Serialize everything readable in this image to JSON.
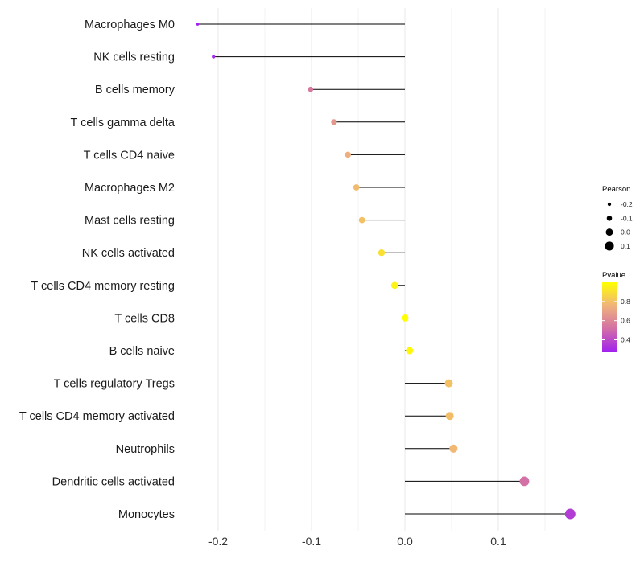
{
  "chart_data": {
    "type": "lollipop",
    "title": "",
    "xlabel": "",
    "ylabel": "",
    "xlim": [
      -0.235,
      0.18
    ],
    "x_ticks": [
      -0.2,
      -0.1,
      0.0,
      0.1
    ],
    "x_tick_labels": [
      "-0.2",
      "-0.1",
      "0.0",
      "0.1"
    ],
    "grid": true,
    "categories": [
      "Macrophages M0",
      "NK cells resting",
      "B cells memory",
      "T cells gamma delta",
      "T cells CD4 naive",
      "Macrophages M2",
      "Mast cells resting",
      "NK cells activated",
      "T cells CD4 memory resting",
      "T cells CD8",
      "B cells naive",
      "T cells regulatory  Tregs ",
      "T cells CD4 memory activated",
      "Neutrophils",
      "Dendritic cells activated",
      "Monocytes"
    ],
    "values": [
      -0.222,
      -0.205,
      -0.101,
      -0.076,
      -0.061,
      -0.052,
      -0.046,
      -0.025,
      -0.011,
      0.0,
      0.005,
      0.047,
      0.048,
      0.052,
      0.128,
      0.177
    ],
    "pvalues": [
      0.28,
      0.3,
      0.55,
      0.66,
      0.74,
      0.78,
      0.8,
      0.9,
      0.96,
      1.0,
      0.98,
      0.8,
      0.79,
      0.77,
      0.52,
      0.36
    ],
    "legend_size": {
      "title": "Pearson",
      "labels": [
        "-0.2",
        "-0.1",
        "0.0",
        "0.1"
      ],
      "values": [
        -0.2,
        -0.1,
        0.0,
        0.1
      ]
    },
    "legend_color": {
      "title": "Pvalue",
      "labels": [
        "0.8",
        "0.6",
        "0.4"
      ],
      "values": [
        0.8,
        0.6,
        0.4
      ],
      "range": [
        0.27,
        1.0
      ],
      "colors": [
        "#A020F0",
        "#D26EA6",
        "#F0B37A",
        "#FFFF00"
      ]
    },
    "stem_color": "#000000",
    "grid_color": "#EBEBEB"
  }
}
